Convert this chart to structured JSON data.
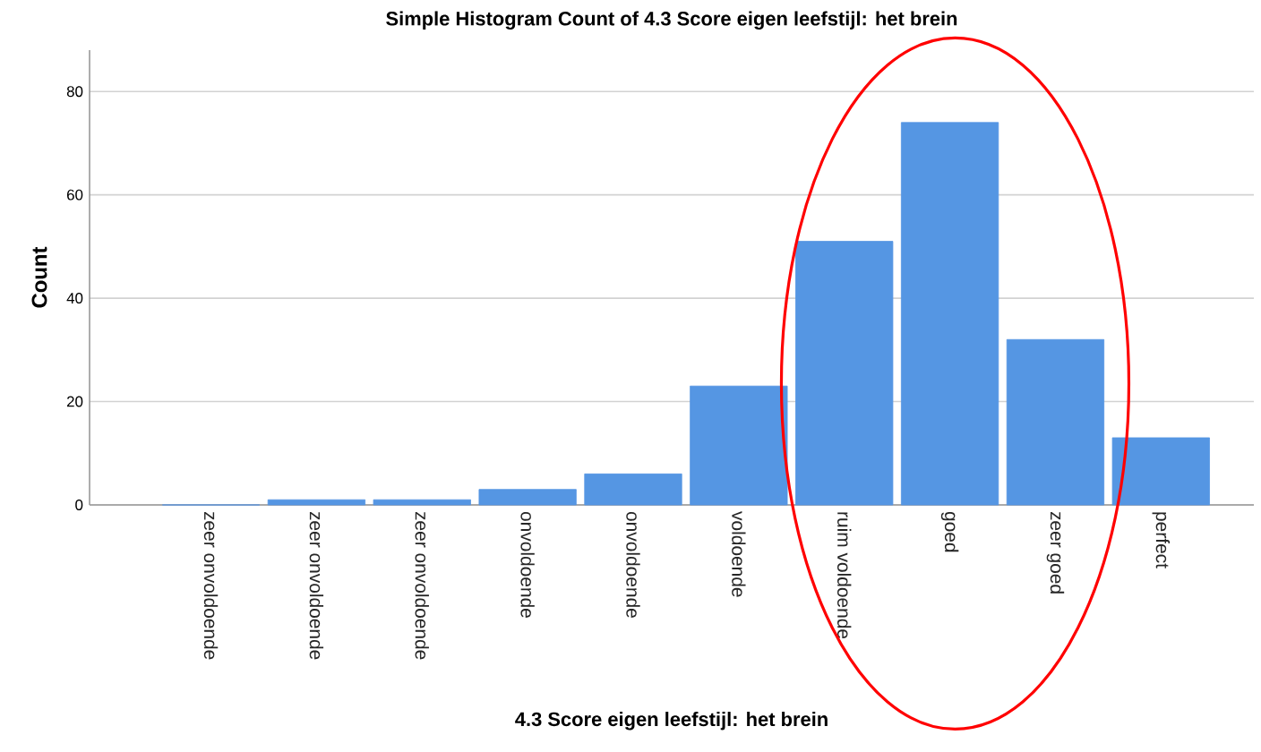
{
  "chart_data": {
    "type": "bar",
    "title": "Simple Histogram Count of 4.3 Score eigen leefstijl: het brein",
    "xlabel": "4.3 Score eigen leefstijl: het brein",
    "ylabel": "Count",
    "categories": [
      "zeer onvoldoende",
      "zeer onvoldoende",
      "zeer onvoldoende",
      "onvoldoende",
      "onvoldoende",
      "voldoende",
      "ruim voldoende",
      "goed",
      "zeer goed",
      "perfect"
    ],
    "values": [
      0,
      1,
      1,
      3,
      6,
      23,
      51,
      74,
      32,
      13
    ],
    "color": "#5596e3",
    "ylim": [
      0,
      88
    ],
    "yticks": [
      0,
      20,
      40,
      60,
      80
    ],
    "grid": "y"
  }
}
